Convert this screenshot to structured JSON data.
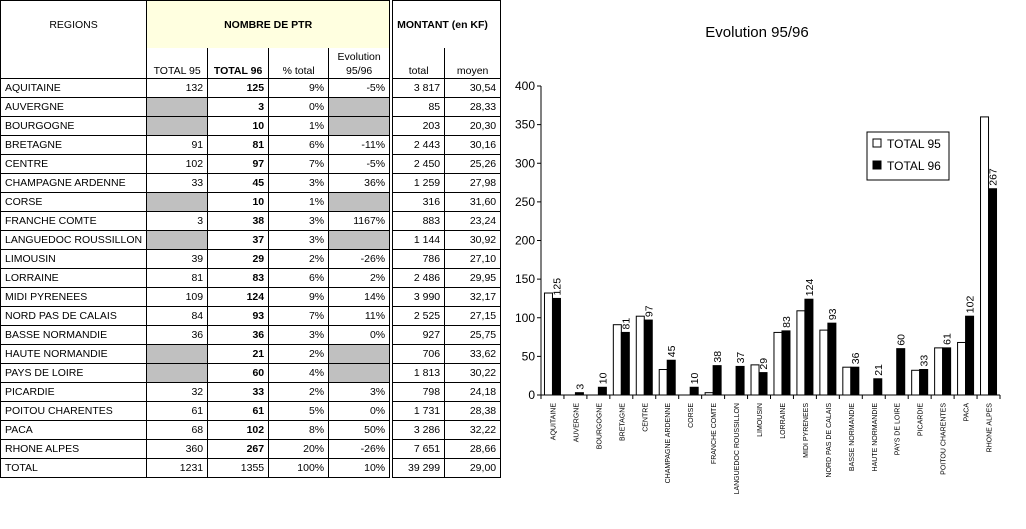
{
  "table": {
    "headers": {
      "regions": "REGIONS",
      "nombre": "NOMBRE DE PTR",
      "montant": "MONTANT (en KF)",
      "total95": "TOTAL 95",
      "total96": "TOTAL 96",
      "pct": "% total",
      "evol_l1": "Evolution",
      "evol_l2": "95/96",
      "total": "total",
      "moyen": "moyen"
    },
    "rows": [
      {
        "region": "AQUITAINE",
        "t95": "132",
        "t96": "125",
        "pct": "9%",
        "evol": "-5%",
        "total": "3 817",
        "moyen": "30,54"
      },
      {
        "region": "AUVERGNE",
        "t95": "",
        "t96": "3",
        "pct": "0%",
        "evol": "",
        "total": "85",
        "moyen": "28,33",
        "gray": true
      },
      {
        "region": "BOURGOGNE",
        "t95": "",
        "t96": "10",
        "pct": "1%",
        "evol": "",
        "total": "203",
        "moyen": "20,30",
        "gray": true
      },
      {
        "region": "BRETAGNE",
        "t95": "91",
        "t96": "81",
        "pct": "6%",
        "evol": "-11%",
        "total": "2 443",
        "moyen": "30,16"
      },
      {
        "region": "CENTRE",
        "t95": "102",
        "t96": "97",
        "pct": "7%",
        "evol": "-5%",
        "total": "2 450",
        "moyen": "25,26"
      },
      {
        "region": "CHAMPAGNE ARDENNE",
        "t95": "33",
        "t96": "45",
        "pct": "3%",
        "evol": "36%",
        "total": "1 259",
        "moyen": "27,98"
      },
      {
        "region": "CORSE",
        "t95": "",
        "t96": "10",
        "pct": "1%",
        "evol": "",
        "total": "316",
        "moyen": "31,60",
        "gray": true
      },
      {
        "region": "FRANCHE COMTE",
        "t95": "3",
        "t96": "38",
        "pct": "3%",
        "evol": "1167%",
        "total": "883",
        "moyen": "23,24"
      },
      {
        "region": "LANGUEDOC ROUSSILLON",
        "t95": "",
        "t96": "37",
        "pct": "3%",
        "evol": "",
        "total": "1 144",
        "moyen": "30,92",
        "gray": true
      },
      {
        "region": "LIMOUSIN",
        "t95": "39",
        "t96": "29",
        "pct": "2%",
        "evol": "-26%",
        "total": "786",
        "moyen": "27,10"
      },
      {
        "region": "LORRAINE",
        "t95": "81",
        "t96": "83",
        "pct": "6%",
        "evol": "2%",
        "total": "2 486",
        "moyen": "29,95"
      },
      {
        "region": "MIDI PYRENEES",
        "t95": "109",
        "t96": "124",
        "pct": "9%",
        "evol": "14%",
        "total": "3 990",
        "moyen": "32,17"
      },
      {
        "region": "NORD PAS DE CALAIS",
        "t95": "84",
        "t96": "93",
        "pct": "7%",
        "evol": "11%",
        "total": "2 525",
        "moyen": "27,15"
      },
      {
        "region": "BASSE NORMANDIE",
        "t95": "36",
        "t96": "36",
        "pct": "3%",
        "evol": "0%",
        "total": "927",
        "moyen": "25,75"
      },
      {
        "region": "HAUTE NORMANDIE",
        "t95": "",
        "t96": "21",
        "pct": "2%",
        "evol": "",
        "total": "706",
        "moyen": "33,62",
        "gray": true
      },
      {
        "region": "PAYS DE LOIRE",
        "t95": "",
        "t96": "60",
        "pct": "4%",
        "evol": "",
        "total": "1 813",
        "moyen": "30,22",
        "gray": true
      },
      {
        "region": "PICARDIE",
        "t95": "32",
        "t96": "33",
        "pct": "2%",
        "evol": "3%",
        "total": "798",
        "moyen": "24,18"
      },
      {
        "region": "POITOU CHARENTES",
        "t95": "61",
        "t96": "61",
        "pct": "5%",
        "evol": "0%",
        "total": "1 731",
        "moyen": "28,38"
      },
      {
        "region": "PACA",
        "t95": "68",
        "t96": "102",
        "pct": "8%",
        "evol": "50%",
        "total": "3 286",
        "moyen": "32,22"
      },
      {
        "region": "RHONE ALPES",
        "t95": "360",
        "t96": "267",
        "pct": "20%",
        "evol": "-26%",
        "total": "7 651",
        "moyen": "28,66"
      }
    ],
    "total_row": {
      "region": "TOTAL",
      "t95": "1231",
      "t96": "1355",
      "pct": "100%",
      "evol": "10%",
      "total": "39 299",
      "moyen": "29,00"
    }
  },
  "chart_data": {
    "type": "bar",
    "title": "Evolution 95/96",
    "categories": [
      "AQUITAINE",
      "AUVERGNE",
      "BOURGOGNE",
      "BRETAGNE",
      "CENTRE",
      "CHAMPAGNE ARDENNE",
      "CORSE",
      "FRANCHE COMTE",
      "LANGUEDOC ROUSSILLON",
      "LIMOUSIN",
      "LORRAINE",
      "MIDI PYRENEES",
      "NORD PAS DE CALAIS",
      "BASSE NORMANDIE",
      "HAUTE NORMANDIE",
      "PAYS DE LOIRE",
      "PICARDIE",
      "POITOU CHARENTES",
      "PACA",
      "RHONE ALPES"
    ],
    "series": [
      {
        "name": "TOTAL 95",
        "values": [
          132,
          0,
          0,
          91,
          102,
          33,
          0,
          3,
          0,
          39,
          81,
          109,
          84,
          36,
          0,
          0,
          32,
          61,
          68,
          360
        ],
        "color": "#ffffff"
      },
      {
        "name": "TOTAL 96",
        "values": [
          125,
          3,
          10,
          81,
          97,
          45,
          10,
          38,
          37,
          29,
          83,
          124,
          93,
          36,
          21,
          60,
          33,
          61,
          102,
          267
        ],
        "color": "#000000"
      }
    ],
    "data_labels_series": "TOTAL 96",
    "ylim": [
      0,
      400
    ],
    "yticks": [
      0,
      50,
      100,
      150,
      200,
      250,
      300,
      350,
      400
    ],
    "legend": "right",
    "grid": false
  }
}
